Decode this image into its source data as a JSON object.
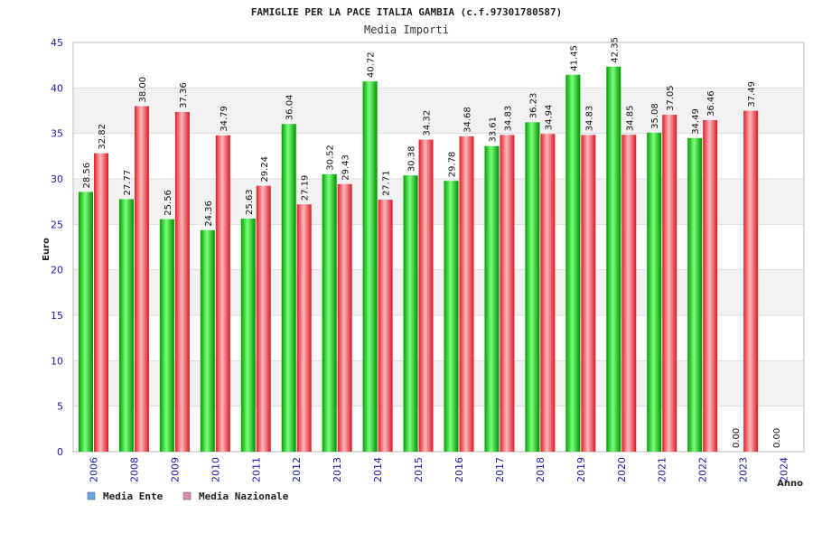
{
  "chart_data": {
    "type": "bar",
    "title": "FAMIGLIE PER LA PACE ITALIA GAMBIA (c.f.97301780587)",
    "subtitle": "Media Importi",
    "ylabel": "Euro",
    "xlabel": "Anno",
    "ylim": [
      0,
      45
    ],
    "yticks": [
      0,
      5,
      10,
      15,
      20,
      25,
      30,
      35,
      40,
      45
    ],
    "categories": [
      "2006",
      "2008",
      "2009",
      "2010",
      "2011",
      "2012",
      "2013",
      "2014",
      "2015",
      "2016",
      "2017",
      "2018",
      "2019",
      "2020",
      "2021",
      "2022",
      "2023",
      "2024"
    ],
    "series": [
      {
        "name": "Media Ente",
        "legend_color": "#66a3e8",
        "values": [
          28.56,
          27.77,
          25.56,
          24.36,
          25.63,
          36.04,
          30.52,
          40.72,
          30.38,
          29.78,
          33.61,
          36.23,
          41.45,
          42.35,
          35.08,
          34.49,
          0,
          0
        ],
        "labels": [
          "28.56",
          "27.77",
          "25.56",
          "24.36",
          "25.63",
          "36.04",
          "30.52",
          "40.72",
          "30.38",
          "29.78",
          "33.61",
          "36.23",
          "41.45",
          "42.35",
          "35.08",
          "34.49",
          "0.00",
          "0.00"
        ]
      },
      {
        "name": "Media Nazionale",
        "legend_color": "#d98cb3",
        "values": [
          32.82,
          38.0,
          37.36,
          34.79,
          29.24,
          27.19,
          29.43,
          27.71,
          34.32,
          34.68,
          34.83,
          34.94,
          34.83,
          34.85,
          37.05,
          36.46,
          37.49,
          null
        ],
        "labels": [
          "32.82",
          "38.00",
          "37.36",
          "34.79",
          "29.24",
          "27.19",
          "29.43",
          "27.71",
          "34.32",
          "34.68",
          "34.83",
          "34.94",
          "34.83",
          "34.85",
          "37.05",
          "36.46",
          "37.49",
          ""
        ]
      }
    ],
    "colors": {
      "ente_bar": "#00b400",
      "nazionale_bar": "#e8202a",
      "band": "#f2f2f2",
      "tick_text": "#1a1aa6"
    }
  }
}
